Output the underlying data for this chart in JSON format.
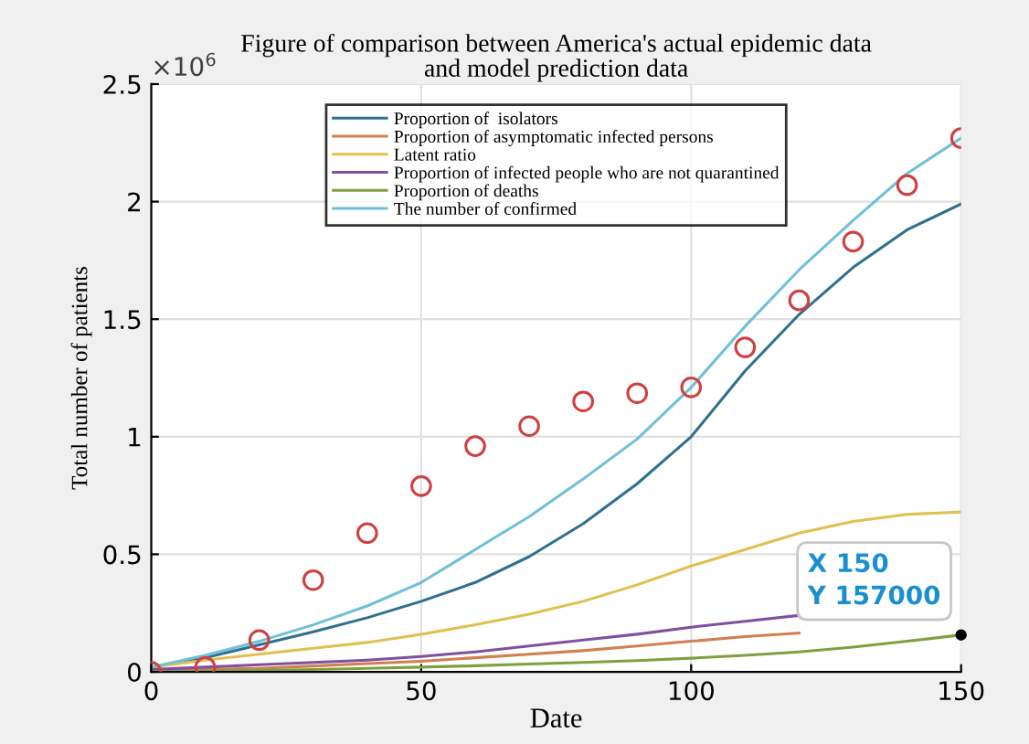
{
  "chart_data": {
    "type": "line",
    "title": "Figure of comparison between America's actual epidemic data\nand model prediction data",
    "xlabel": "Date",
    "ylabel": "Total number of patients",
    "x": [
      0,
      10,
      20,
      30,
      40,
      50,
      60,
      70,
      80,
      90,
      100,
      110,
      120,
      130,
      140,
      150
    ],
    "series": [
      {
        "name": "Proportion of  isolators",
        "color": "#30708f",
        "values": [
          0.02,
          0.06,
          0.115,
          0.17,
          0.23,
          0.3,
          0.38,
          0.49,
          0.63,
          0.8,
          1.0,
          1.28,
          1.52,
          1.72,
          1.88,
          1.99
        ]
      },
      {
        "name": "Proportion of asymptomatic\ninfected persons",
        "color": "#d08050",
        "values": [
          0.005,
          0.01,
          0.015,
          0.025,
          0.035,
          0.045,
          0.06,
          0.075,
          0.09,
          0.11,
          0.13,
          0.15,
          0.165,
          null,
          null,
          null
        ]
      },
      {
        "name": "Latent ratio",
        "color": "#e0c050",
        "values": [
          0.02,
          0.05,
          0.075,
          0.1,
          0.125,
          0.16,
          0.2,
          0.245,
          0.3,
          0.37,
          0.45,
          0.52,
          0.59,
          0.64,
          0.67,
          0.68
        ]
      },
      {
        "name": "Proportion of infected people\nwho are not quarantined",
        "color": "#8050a0",
        "values": [
          0.01,
          0.02,
          0.03,
          0.04,
          0.05,
          0.065,
          0.085,
          0.11,
          0.135,
          0.16,
          0.19,
          0.215,
          0.24,
          null,
          null,
          null
        ]
      },
      {
        "name": "Proportion of deaths",
        "color": "#80a040",
        "values": [
          0,
          0.003,
          0.006,
          0.01,
          0.015,
          0.02,
          0.026,
          0.033,
          0.04,
          0.048,
          0.058,
          0.07,
          0.085,
          0.105,
          0.13,
          0.157
        ]
      },
      {
        "name": "The number of confirmed",
        "color": "#70c0d8",
        "values": [
          0.02,
          0.07,
          0.13,
          0.2,
          0.28,
          0.38,
          0.52,
          0.66,
          0.82,
          0.99,
          1.21,
          1.47,
          1.71,
          1.92,
          2.12,
          2.27
        ]
      },
      {
        "type": "scatter",
        "marker": "circle",
        "color": "#d04040",
        "values": [
          0,
          0.02,
          0.135,
          0.39,
          0.59,
          0.79,
          0.96,
          1.045,
          1.15,
          1.185,
          1.21,
          1.38,
          1.58,
          1.83,
          2.07,
          2.27
        ]
      }
    ],
    "xlim": [
      0,
      150
    ],
    "xticks": [
      0,
      50,
      100,
      150
    ],
    "ylim": [
      0,
      2.5
    ],
    "yticks": [
      0,
      0.5,
      1,
      1.5,
      2,
      2.5
    ],
    "annotations": [
      "×10$^{6}$",
      {
        "text": "X 150\nY 157000",
        "x": 150,
        "y": 0.157
      }
    ],
    "grid": true,
    "legend": "top"
  }
}
